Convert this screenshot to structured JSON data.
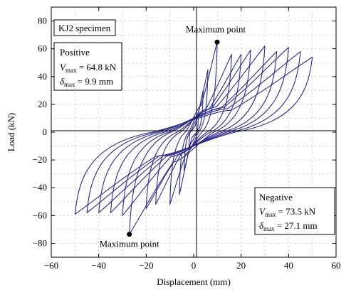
{
  "chart_data": {
    "type": "line",
    "title": "",
    "xlabel": "Displacement (mm)",
    "ylabel": "Load (kN)",
    "xlim": [
      -60,
      60
    ],
    "ylim": [
      -90,
      90
    ],
    "xticks": [
      -60,
      -40,
      -20,
      0,
      20,
      40,
      60
    ],
    "yticks": [
      -80,
      -60,
      -40,
      -20,
      0,
      20,
      40,
      60,
      80
    ],
    "xtick_labels": [
      "−60",
      "−40",
      "−20",
      "0",
      "20",
      "40",
      "60"
    ],
    "ytick_labels": [
      "−80",
      "−60",
      "−40",
      "−20",
      "0",
      "20",
      "40",
      "60",
      "80"
    ],
    "grid": true,
    "line_color": "#2a2a8c",
    "specimen_label": "KJ2 specimen",
    "positive_box": {
      "title": "Positive",
      "v_symbol": "V",
      "v_sub": "max",
      "v_value": " = 64.8 kN",
      "d_symbol": "δ",
      "d_sub": "max",
      "d_value": " = 9.9 mm"
    },
    "negative_box": {
      "title": "Negative",
      "v_symbol": "V",
      "v_sub": "max",
      "v_value": " = 73.5 kN",
      "d_symbol": "δ",
      "d_sub": "max",
      "d_value": " = 27.1 mm"
    },
    "max_points": [
      {
        "label": "Maximum point",
        "x": 9.9,
        "y": 64.8
      },
      {
        "label": "Maximum point",
        "x": -27.1,
        "y": -73.5
      }
    ],
    "loops": [
      {
        "dp": 2,
        "fp": 15,
        "dn": -2,
        "fn": -12
      },
      {
        "dp": 4,
        "fp": 30,
        "dn": -4,
        "fn": -28
      },
      {
        "dp": 6,
        "fp": 45,
        "dn": -6,
        "fn": -45
      },
      {
        "dp": 9.9,
        "fp": 64.8,
        "dn": -10,
        "fn": -52
      },
      {
        "dp": 16,
        "fp": 56,
        "dn": -16,
        "fn": -52
      },
      {
        "dp": 20,
        "fp": 56,
        "dn": -20,
        "fn": -55
      },
      {
        "dp": 24,
        "fp": 59,
        "dn": -27.1,
        "fn": -73.5
      },
      {
        "dp": 30,
        "fp": 62,
        "dn": -30,
        "fn": -60
      },
      {
        "dp": 35,
        "fp": 58,
        "dn": -35,
        "fn": -58
      },
      {
        "dp": 40,
        "fp": 61,
        "dn": -40,
        "fn": -58
      },
      {
        "dp": 45,
        "fp": 58,
        "dn": -45,
        "fn": -58
      },
      {
        "dp": 50,
        "fp": 54,
        "dn": -50,
        "fn": -59
      }
    ]
  }
}
